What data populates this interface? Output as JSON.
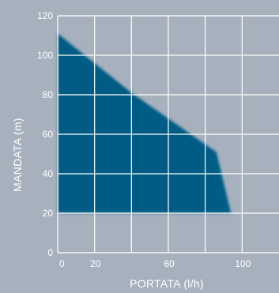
{
  "chart_data": {
    "type": "area",
    "title": "",
    "xlabel": "PORTATA (l/h)",
    "ylabel": "MANDATA (m)",
    "xlim": [
      0,
      120
    ],
    "ylim": [
      0,
      120
    ],
    "x_ticks": [
      0,
      20,
      60,
      100
    ],
    "y_ticks": [
      0,
      20,
      40,
      60,
      80,
      100,
      120
    ],
    "grid": true,
    "fill_color": "#005b84",
    "background_color": "#a7b1bd",
    "grid_color": "#ffffff",
    "series": [
      {
        "upper": [
          {
            "x": 0,
            "y": 111
          },
          {
            "x": 40,
            "y": 81
          },
          {
            "x": 86,
            "y": 51
          },
          {
            "x": 94,
            "y": 20
          }
        ],
        "lower": [
          {
            "x": 0,
            "y": 20
          },
          {
            "x": 94,
            "y": 20
          }
        ]
      }
    ]
  }
}
